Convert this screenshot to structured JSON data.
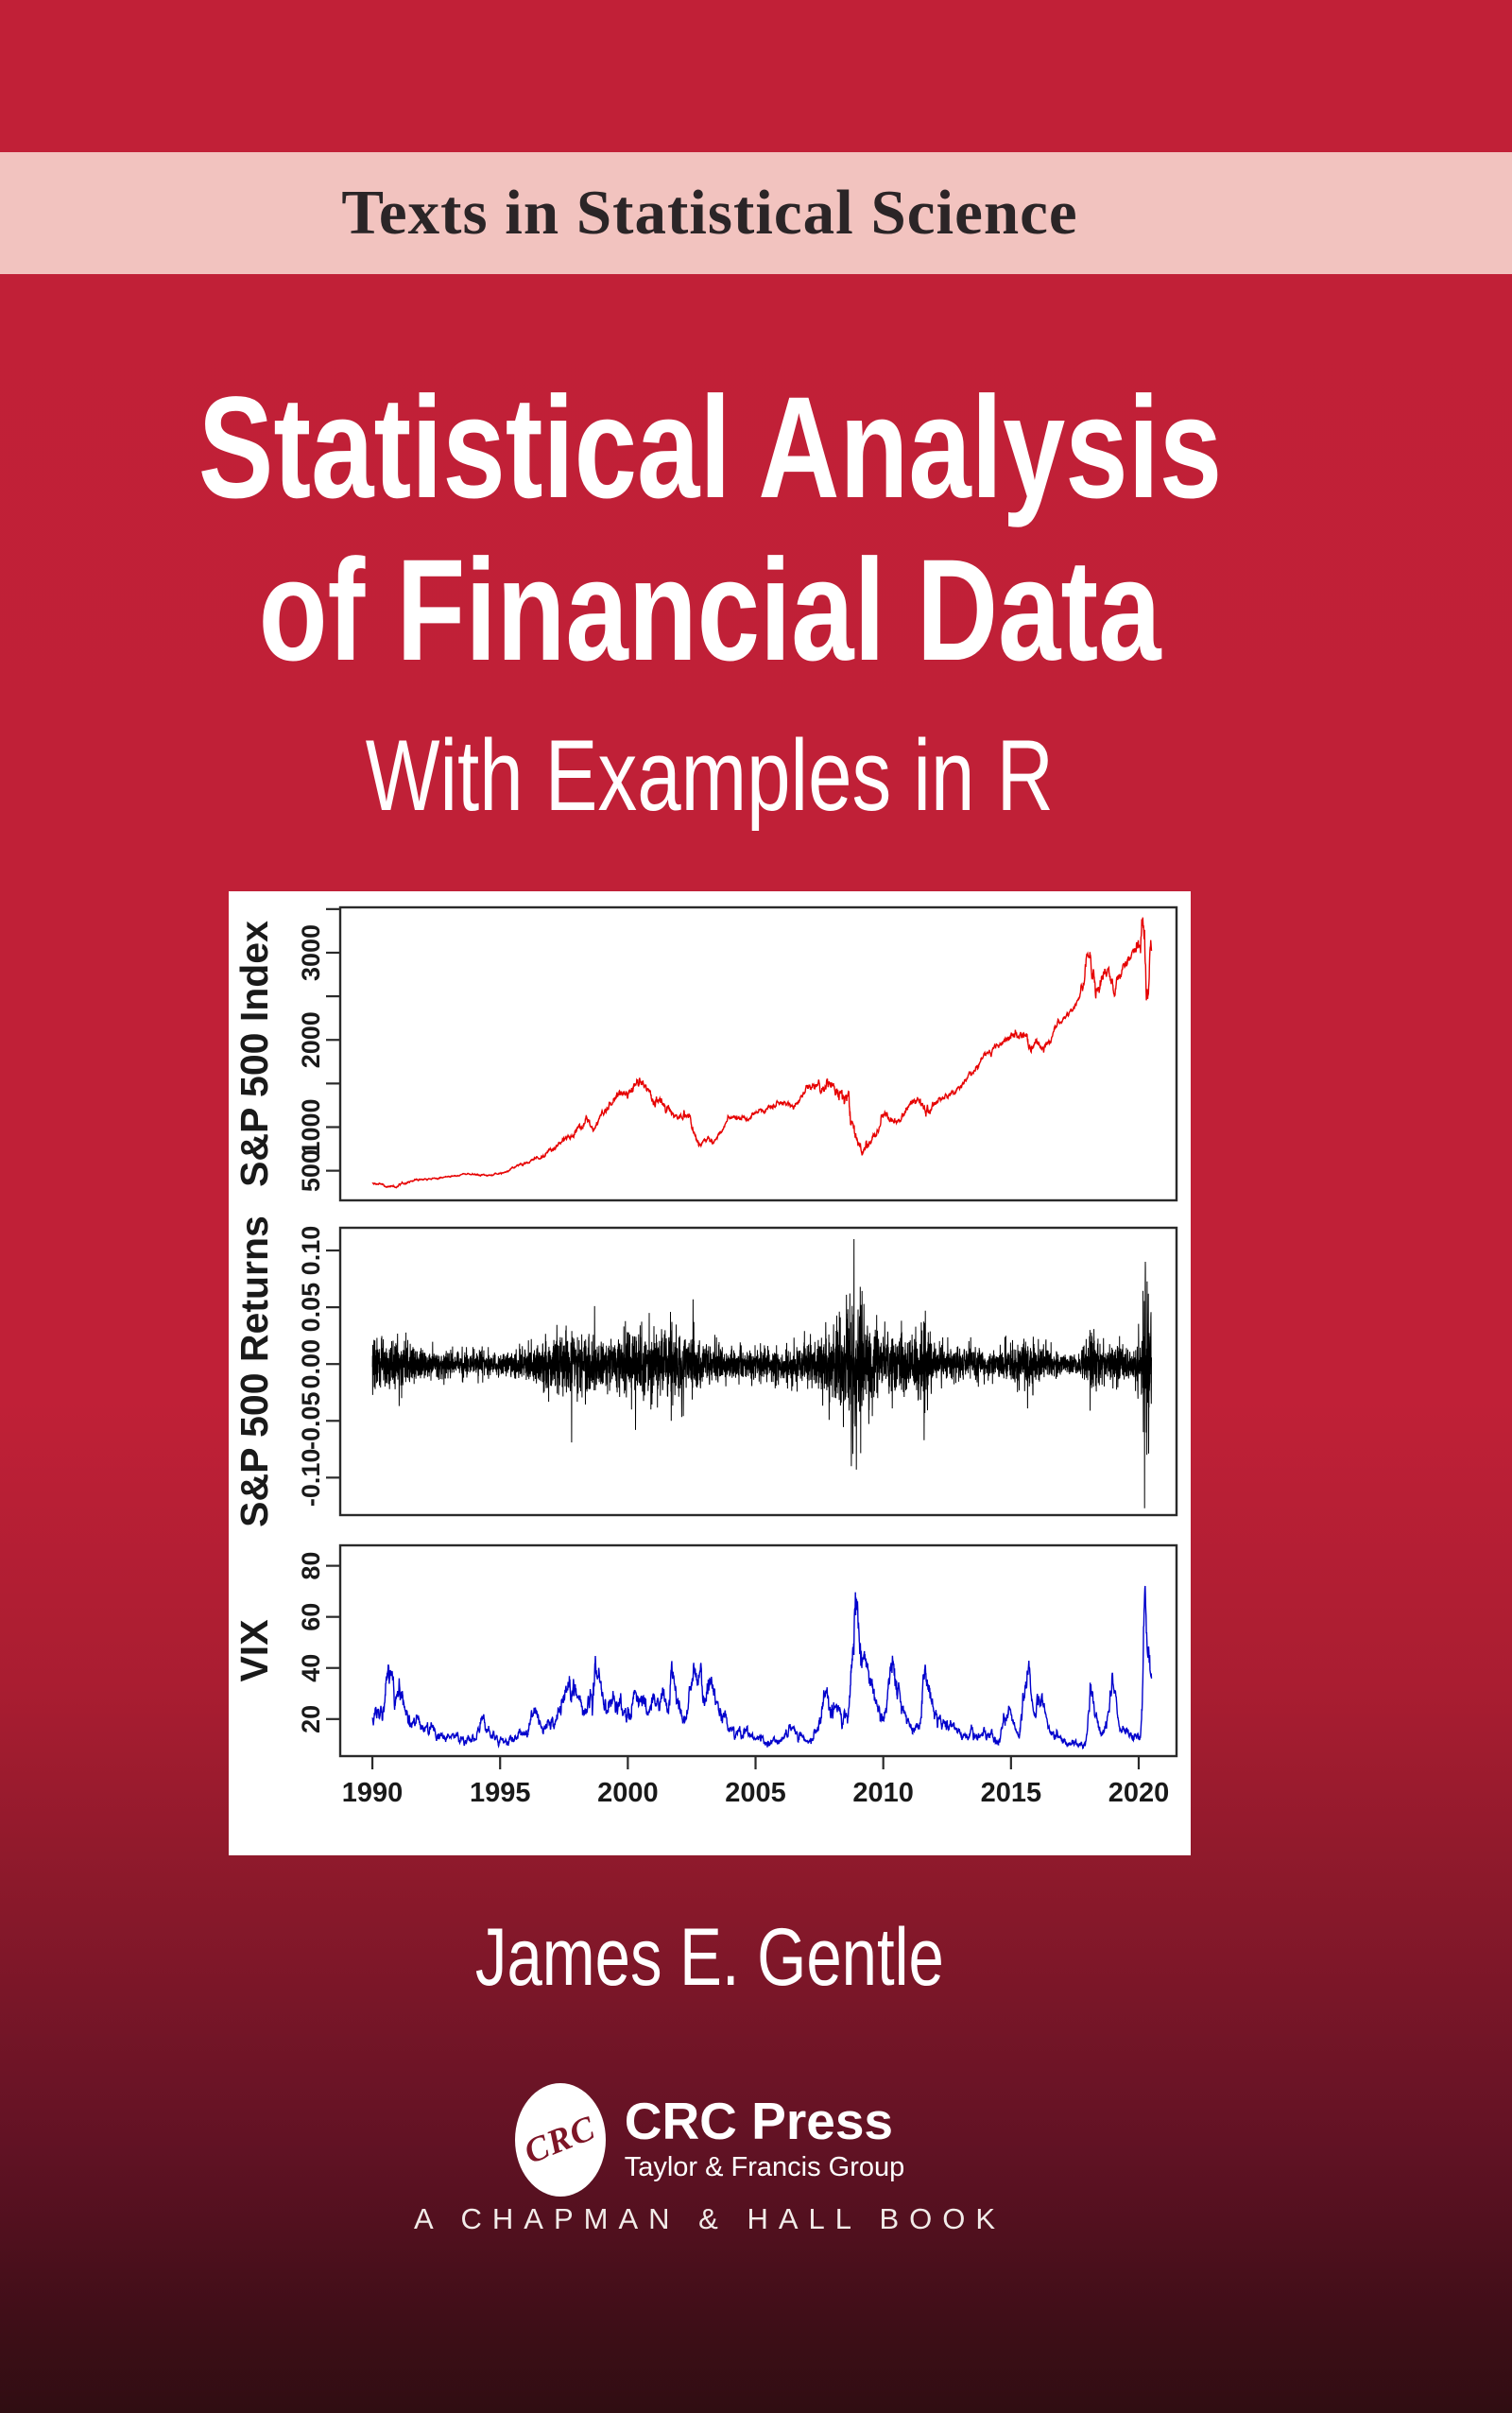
{
  "series_banner": {
    "label": "Texts in Statistical Science"
  },
  "title": {
    "line1": "Statistical Analysis",
    "line2": "of Financial Data",
    "subtitle": "With Examples in R"
  },
  "author": {
    "name": "James E. Gentle"
  },
  "publisher": {
    "monogram": "CRC",
    "name": "CRC Press",
    "group": "Taylor & Francis Group",
    "imprint_line": "A CHAPMAN & HALL BOOK"
  },
  "colors": {
    "cover_top_red": "#C02037",
    "cover_bottom_maroon": "#300D12",
    "banner_pink": "#F2C3BF",
    "index_line": "#E60000",
    "returns_line": "#000000",
    "vix_line": "#0000CC",
    "axis_ink": "#1A1A1A"
  },
  "x_axis": {
    "range": [
      1990,
      2020.5
    ],
    "padded": [
      1988.74,
      2021.48
    ],
    "ticks": [
      1990,
      1995,
      2000,
      2005,
      2010,
      2015,
      2020
    ],
    "tick_labels": [
      "1990",
      "1995",
      "2000",
      "2005",
      "2010",
      "2015",
      "2020"
    ]
  },
  "chart_data": [
    {
      "type": "line",
      "name": "sp500-index",
      "ylabel": "S&P 500 Index",
      "color": "#E60000",
      "ylim": [
        160,
        3520
      ],
      "yticks": [
        500,
        1000,
        1500,
        2000,
        2500,
        3000,
        3500
      ],
      "ytick_labels": [
        "500",
        "1000",
        "",
        "2000",
        "",
        "3000",
        ""
      ],
      "anchors": [
        [
          1990.0,
          355
        ],
        [
          1990.3,
          342
        ],
        [
          1990.8,
          306
        ],
        [
          1991.3,
          375
        ],
        [
          1992.0,
          412
        ],
        [
          1992.5,
          415
        ],
        [
          1993.0,
          442
        ],
        [
          1993.8,
          462
        ],
        [
          1994.3,
          445
        ],
        [
          1995.0,
          470
        ],
        [
          1995.8,
          585
        ],
        [
          1996.5,
          650
        ],
        [
          1997.0,
          760
        ],
        [
          1997.6,
          915
        ],
        [
          1997.75,
          870
        ],
        [
          1998.3,
          1100
        ],
        [
          1998.65,
          965
        ],
        [
          1999.0,
          1250
        ],
        [
          1999.6,
          1350
        ],
        [
          2000.2,
          1510
        ],
        [
          2000.6,
          1430
        ],
        [
          2001.0,
          1320
        ],
        [
          2001.7,
          1075
        ],
        [
          2001.9,
          1140
        ],
        [
          2002.3,
          1120
        ],
        [
          2002.75,
          790
        ],
        [
          2003.0,
          880
        ],
        [
          2003.2,
          835
        ],
        [
          2004.0,
          1120
        ],
        [
          2004.6,
          1100
        ],
        [
          2005.0,
          1200
        ],
        [
          2006.0,
          1280
        ],
        [
          2006.5,
          1260
        ],
        [
          2007.0,
          1440
        ],
        [
          2007.8,
          1540
        ],
        [
          2008.3,
          1320
        ],
        [
          2008.65,
          1260
        ],
        [
          2008.8,
          1000
        ],
        [
          2009.15,
          690
        ],
        [
          2009.6,
          990
        ],
        [
          2010.0,
          1140
        ],
        [
          2010.55,
          1040
        ],
        [
          2011.1,
          1320
        ],
        [
          2011.65,
          1130
        ],
        [
          2012.0,
          1320
        ],
        [
          2012.5,
          1340
        ],
        [
          2013.0,
          1500
        ],
        [
          2013.9,
          1820
        ],
        [
          2014.7,
          2000
        ],
        [
          2015.2,
          2110
        ],
        [
          2015.7,
          1890
        ],
        [
          2016.0,
          2030
        ],
        [
          2016.15,
          1860
        ],
        [
          2016.7,
          2170
        ],
        [
          2017.5,
          2420
        ],
        [
          2018.05,
          2830
        ],
        [
          2018.3,
          2620
        ],
        [
          2018.75,
          2900
        ],
        [
          2019.0,
          2400
        ],
        [
          2019.4,
          2900
        ],
        [
          2019.8,
          3050
        ],
        [
          2020.1,
          3330
        ],
        [
          2020.16,
          3390
        ],
        [
          2020.25,
          2260
        ],
        [
          2020.35,
          2650
        ],
        [
          2020.45,
          3000
        ],
        [
          2020.5,
          3230
        ]
      ]
    },
    {
      "type": "line",
      "name": "sp500-returns",
      "ylabel": "S&P 500 Returns",
      "color": "#000000",
      "ylim": [
        -0.133,
        0.12
      ],
      "yticks": [
        -0.1,
        -0.05,
        0.0,
        0.05,
        0.1
      ],
      "ytick_labels": [
        "-0.10",
        "-0.05",
        "0.00",
        "0.05",
        "0.10"
      ],
      "sigma_anchors": [
        [
          1990,
          0.01
        ],
        [
          1991,
          0.011
        ],
        [
          1992,
          0.007
        ],
        [
          1993,
          0.0055
        ],
        [
          1994,
          0.006
        ],
        [
          1995,
          0.0055
        ],
        [
          1996,
          0.007
        ],
        [
          1997,
          0.012
        ],
        [
          1998,
          0.013
        ],
        [
          1999,
          0.012
        ],
        [
          2000,
          0.014
        ],
        [
          2001,
          0.014
        ],
        [
          2002,
          0.017
        ],
        [
          2003,
          0.011
        ],
        [
          2004,
          0.007
        ],
        [
          2005,
          0.0065
        ],
        [
          2006,
          0.007
        ],
        [
          2007,
          0.01
        ],
        [
          2008,
          0.016
        ],
        [
          2008.8,
          0.034
        ],
        [
          2009.2,
          0.026
        ],
        [
          2009.8,
          0.013
        ],
        [
          2010.35,
          0.014
        ],
        [
          2011,
          0.011
        ],
        [
          2011.65,
          0.02
        ],
        [
          2012,
          0.009
        ],
        [
          2013,
          0.007
        ],
        [
          2014,
          0.006
        ],
        [
          2015,
          0.008
        ],
        [
          2015.7,
          0.013
        ],
        [
          2016,
          0.01
        ],
        [
          2016.8,
          0.005
        ],
        [
          2017.5,
          0.004
        ],
        [
          2018.1,
          0.014
        ],
        [
          2018.6,
          0.008
        ],
        [
          2019,
          0.009
        ],
        [
          2019.8,
          0.006
        ],
        [
          2020.1,
          0.016
        ],
        [
          2020.25,
          0.04
        ],
        [
          2020.5,
          0.02
        ]
      ],
      "outliers": [
        [
          1991.05,
          -0.037
        ],
        [
          1997.8,
          -0.069
        ],
        [
          1998.7,
          0.051
        ],
        [
          2000.3,
          -0.058
        ],
        [
          2001.7,
          -0.05
        ],
        [
          2002.55,
          0.057
        ],
        [
          2008.75,
          -0.09
        ],
        [
          2008.85,
          0.11
        ],
        [
          2008.95,
          -0.093
        ],
        [
          2009.1,
          0.068
        ],
        [
          2010.35,
          -0.039
        ],
        [
          2011.6,
          -0.067
        ],
        [
          2011.65,
          0.047
        ],
        [
          2015.65,
          -0.039
        ],
        [
          2018.1,
          -0.041
        ],
        [
          2020.18,
          -0.06
        ],
        [
          2020.23,
          -0.127
        ],
        [
          2020.26,
          0.09
        ],
        [
          2020.32,
          -0.08
        ],
        [
          2020.38,
          0.062
        ]
      ]
    },
    {
      "type": "line",
      "name": "vix",
      "ylabel": "VIX",
      "color": "#0000CC",
      "ylim": [
        5.5,
        88
      ],
      "yticks": [
        20,
        40,
        60,
        80
      ],
      "ytick_labels": [
        "20",
        "40",
        "60",
        "80"
      ],
      "anchors": [
        [
          1990.0,
          20
        ],
        [
          1990.3,
          22
        ],
        [
          1990.62,
          36
        ],
        [
          1990.8,
          28
        ],
        [
          1991.1,
          34
        ],
        [
          1991.3,
          22
        ],
        [
          1992.0,
          17
        ],
        [
          1992.5,
          15
        ],
        [
          1993.0,
          13
        ],
        [
          1993.5,
          12.5
        ],
        [
          1994.0,
          12
        ],
        [
          1994.25,
          20
        ],
        [
          1994.6,
          13
        ],
        [
          1995.0,
          12.5
        ],
        [
          1995.5,
          12
        ],
        [
          1996.0,
          16
        ],
        [
          1996.3,
          20
        ],
        [
          1996.6,
          16
        ],
        [
          1997.0,
          20
        ],
        [
          1997.3,
          23
        ],
        [
          1997.8,
          38
        ],
        [
          1998.1,
          22
        ],
        [
          1998.4,
          21
        ],
        [
          1998.72,
          45.7
        ],
        [
          1999.0,
          26
        ],
        [
          1999.4,
          24
        ],
        [
          1999.8,
          23
        ],
        [
          2000.1,
          24
        ],
        [
          2000.3,
          29
        ],
        [
          2000.8,
          22
        ],
        [
          2001.0,
          26
        ],
        [
          2001.3,
          32
        ],
        [
          2001.55,
          23
        ],
        [
          2001.72,
          43
        ],
        [
          2002.0,
          22
        ],
        [
          2002.3,
          21
        ],
        [
          2002.6,
          45
        ],
        [
          2002.9,
          30
        ],
        [
          2003.2,
          34
        ],
        [
          2003.7,
          20
        ],
        [
          2004.0,
          16
        ],
        [
          2004.5,
          15
        ],
        [
          2005.0,
          13
        ],
        [
          2005.5,
          11.5
        ],
        [
          2006.0,
          11.5
        ],
        [
          2006.4,
          18
        ],
        [
          2006.8,
          11
        ],
        [
          2007.1,
          11
        ],
        [
          2007.45,
          18
        ],
        [
          2007.65,
          30
        ],
        [
          2007.9,
          23
        ],
        [
          2008.1,
          26
        ],
        [
          2008.35,
          21
        ],
        [
          2008.65,
          24
        ],
        [
          2008.78,
          48
        ],
        [
          2008.87,
          80.9
        ],
        [
          2009.0,
          45
        ],
        [
          2009.2,
          48
        ],
        [
          2009.5,
          30
        ],
        [
          2009.8,
          24
        ],
        [
          2010.0,
          20
        ],
        [
          2010.33,
          45.8
        ],
        [
          2010.6,
          26
        ],
        [
          2010.9,
          19
        ],
        [
          2011.1,
          17
        ],
        [
          2011.4,
          16
        ],
        [
          2011.63,
          48
        ],
        [
          2011.8,
          32
        ],
        [
          2012.0,
          21
        ],
        [
          2012.4,
          18
        ],
        [
          2012.8,
          16
        ],
        [
          2013.2,
          13.5
        ],
        [
          2013.7,
          14
        ],
        [
          2014.1,
          13
        ],
        [
          2014.55,
          11.5
        ],
        [
          2014.8,
          25
        ],
        [
          2015.0,
          16
        ],
        [
          2015.3,
          13.5
        ],
        [
          2015.66,
          40.7
        ],
        [
          2015.8,
          18
        ],
        [
          2016.05,
          27
        ],
        [
          2016.2,
          25
        ],
        [
          2016.5,
          14
        ],
        [
          2016.85,
          13
        ],
        [
          2017.2,
          10.5
        ],
        [
          2017.6,
          9.7
        ],
        [
          2017.9,
          9.5
        ],
        [
          2018.08,
          37.3
        ],
        [
          2018.3,
          18
        ],
        [
          2018.6,
          12.5
        ],
        [
          2018.95,
          36
        ],
        [
          2019.15,
          15
        ],
        [
          2019.4,
          16
        ],
        [
          2019.6,
          14
        ],
        [
          2019.9,
          12.5
        ],
        [
          2020.05,
          13
        ],
        [
          2020.14,
          40
        ],
        [
          2020.21,
          82.7
        ],
        [
          2020.33,
          33
        ],
        [
          2020.42,
          41
        ],
        [
          2020.5,
          27
        ]
      ]
    }
  ]
}
